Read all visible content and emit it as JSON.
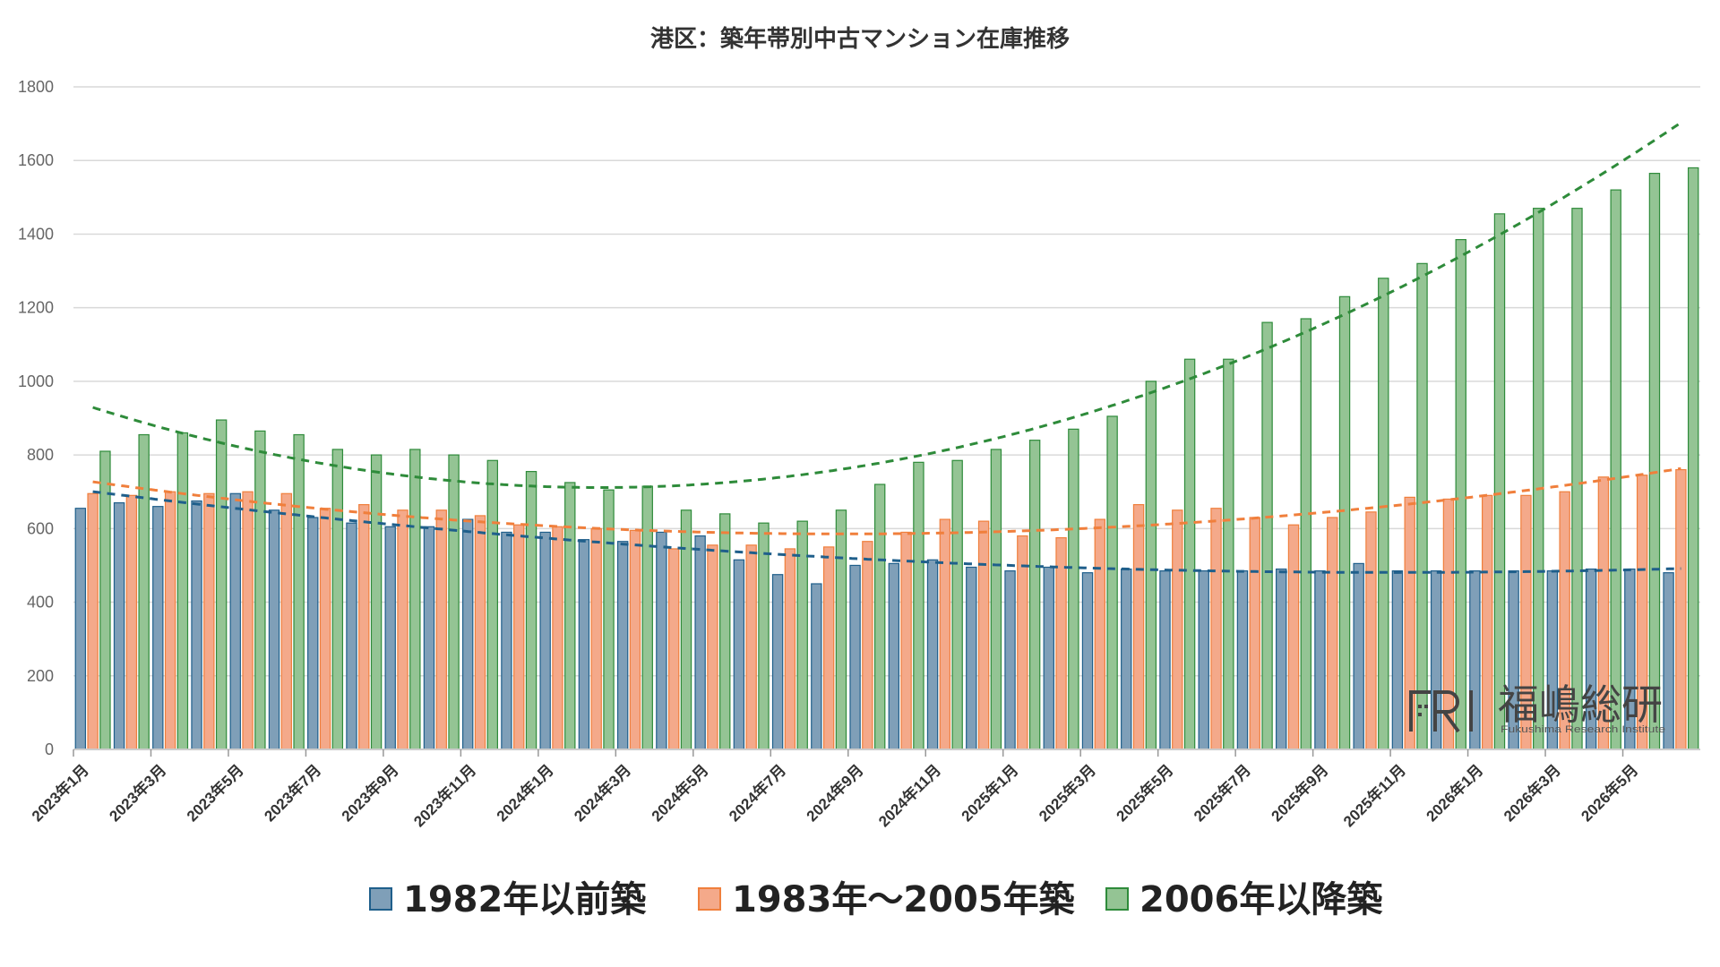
{
  "chart_data": {
    "type": "bar",
    "title": "港区：築年帯別中古マンション在庫推移",
    "ylim": [
      0,
      1800
    ],
    "yticks": [
      0,
      200,
      400,
      600,
      800,
      1000,
      1200,
      1400,
      1600,
      1800
    ],
    "grid": true,
    "legend_position": "bottom",
    "x_tick_labels": [
      "2023年1月",
      "2023年3月",
      "2023年5月",
      "2023年7月",
      "2023年9月",
      "2023年11月",
      "2024年1月",
      "2024年3月",
      "2024年5月",
      "2024年7月",
      "2024年9月",
      "2024年11月",
      "2025年1月",
      "2025年3月",
      "2025年5月",
      "2025年7月",
      "2025年9月",
      "2025年11月",
      "2026年1月",
      "2026年3月",
      "2026年5月"
    ],
    "categories": [
      "2023年1月",
      "2023年2月",
      "2023年3月",
      "2023年4月",
      "2023年5月",
      "2023年6月",
      "2023年7月",
      "2023年8月",
      "2023年9月",
      "2023年10月",
      "2023年11月",
      "2023年12月",
      "2024年1月",
      "2024年2月",
      "2024年3月",
      "2024年4月",
      "2024年5月",
      "2024年6月",
      "2024年7月",
      "2024年8月",
      "2024年9月",
      "2024年10月",
      "2024年11月",
      "2024年12月",
      "2025年1月",
      "2025年2月",
      "2025年3月",
      "2025年4月",
      "2025年5月",
      "2025年6月",
      "2025年7月",
      "2025年8月",
      "2025年9月",
      "2025年10月",
      "2025年11月",
      "2025年12月",
      "2026年1月",
      "2026年2月",
      "2026年3月",
      "2026年4月",
      "2026年5月",
      "2026年6月"
    ],
    "series": [
      {
        "name": "1982年以前築",
        "color": "#7f9fb8",
        "trend_color": "#1f5f8b",
        "values": [
          655,
          670,
          660,
          675,
          695,
          650,
          630,
          615,
          605,
          605,
          625,
          590,
          590,
          570,
          565,
          590,
          580,
          515,
          475,
          450,
          500,
          505,
          515,
          495,
          485,
          495,
          480,
          490,
          485,
          485,
          485,
          490,
          485,
          505,
          485,
          485,
          485,
          485,
          485,
          490,
          490,
          480
        ]
      },
      {
        "name": "1983年～2005年築",
        "color": "#f4a98a",
        "trend_color": "#f07f3c",
        "values": [
          695,
          690,
          700,
          695,
          700,
          695,
          655,
          665,
          650,
          650,
          635,
          610,
          605,
          600,
          595,
          545,
          555,
          555,
          545,
          550,
          565,
          590,
          625,
          620,
          580,
          575,
          625,
          665,
          650,
          655,
          630,
          610,
          630,
          645,
          685,
          680,
          690,
          690,
          700,
          740,
          745,
          760
        ]
      },
      {
        "name": "2006年以降築",
        "color": "#94c494",
        "trend_color": "#2e8b3a",
        "values": [
          810,
          855,
          860,
          895,
          865,
          855,
          815,
          800,
          815,
          800,
          785,
          755,
          725,
          705,
          715,
          650,
          640,
          615,
          620,
          650,
          720,
          780,
          785,
          815,
          840,
          870,
          905,
          1000,
          1060,
          1060,
          1160,
          1170,
          1230,
          1280,
          1320,
          1385,
          1455,
          1470,
          1470,
          1520,
          1565,
          1580
        ]
      }
    ]
  },
  "watermark": {
    "logo_text": "FRI",
    "name_text": "福嶋総研",
    "subtitle": "Fukushima Research Institute"
  }
}
